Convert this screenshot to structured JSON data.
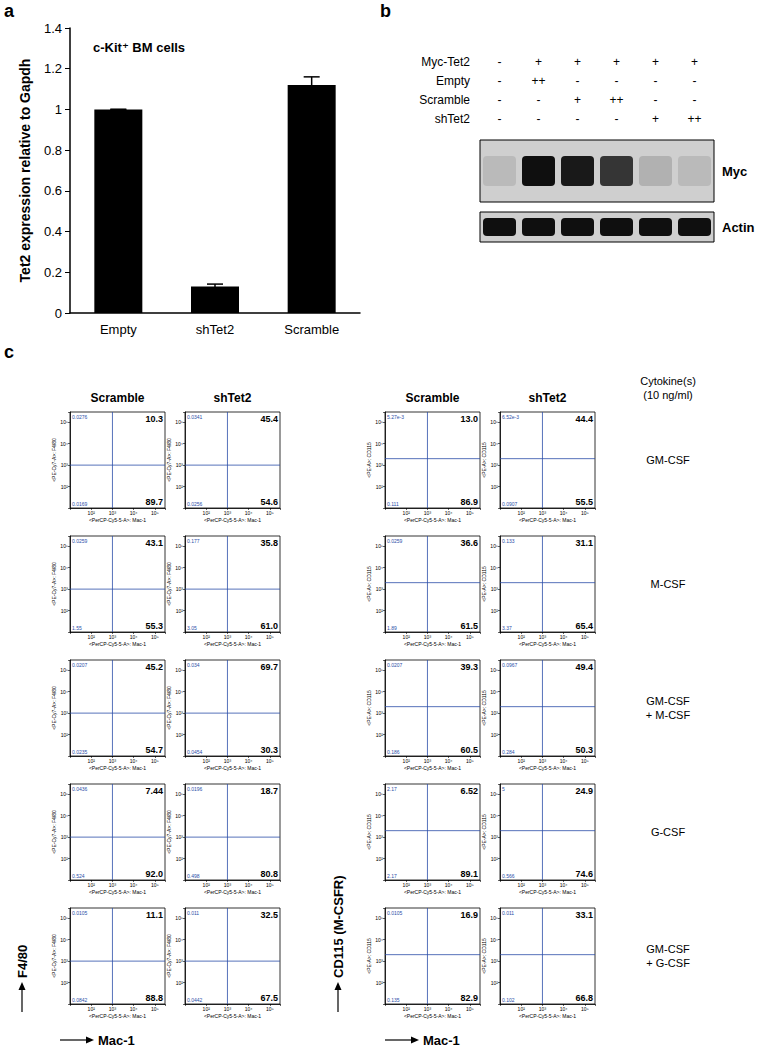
{
  "panel_labels": [
    "a",
    "b",
    "c"
  ],
  "chart_data": {
    "type": "bar",
    "title": "c-Kit⁺ BM cells",
    "ylabel": "Tet2 expression relative to Gapdh",
    "categories": [
      "Empty",
      "shTet2",
      "Scramble"
    ],
    "values": [
      1.0,
      0.13,
      1.12
    ],
    "errors": [
      0,
      0.012,
      0.04
    ],
    "color": "#000000",
    "ylim": [
      0,
      1.4
    ],
    "yticks": [
      0,
      0.2,
      0.4,
      0.6,
      0.8,
      1,
      1.2,
      1.4
    ],
    "grid": false
  },
  "blot": {
    "rows": [
      {
        "label": "Myc-Tet2",
        "lanes": [
          "-",
          "+",
          "+",
          "+",
          "+",
          "+"
        ]
      },
      {
        "label": "Empty",
        "lanes": [
          "-",
          "++",
          "-",
          "-",
          "-",
          "-"
        ]
      },
      {
        "label": "Scramble",
        "lanes": [
          "-",
          "-",
          "+",
          "++",
          "-",
          "-"
        ]
      },
      {
        "label": "shTet2",
        "lanes": [
          "-",
          "-",
          "-",
          "-",
          "+",
          "++"
        ]
      }
    ],
    "bands": [
      {
        "label": "Myc",
        "intensity": [
          0.1,
          1,
          0.95,
          0.8,
          0.15,
          0.1
        ]
      },
      {
        "label": "Actin",
        "intensity": [
          1,
          1,
          1,
          1,
          1,
          1
        ]
      }
    ]
  },
  "panel_c": {
    "cytokine_header": "Cytokine(s)\n(10 ng/ml)",
    "x_label": "Mac-1",
    "x_axis_title": "<PerCP-Cy5-5-A>: Mac-1",
    "xlim": [
      10,
      300000
    ],
    "ylim": [
      10,
      300000
    ],
    "xticks": [
      {
        "value": 100,
        "label": "10²"
      },
      {
        "value": 1000,
        "label": "10³"
      },
      {
        "value": 10000,
        "label": "10⁴"
      },
      {
        "value": 100000,
        "label": "10⁵"
      }
    ],
    "yticks": [
      {
        "value": 100,
        "label": "10²"
      },
      {
        "value": 1000,
        "label": "10³"
      },
      {
        "value": 10000,
        "label": "10⁴"
      },
      {
        "value": 100000,
        "label": "10⁵"
      }
    ],
    "log": true,
    "grid": false,
    "y_labels": [
      "F4/80",
      "CD115 (M-CSFR)"
    ],
    "columns": [
      {
        "header": "Scramble",
        "y_axis_title": "<PE-Cy7-A>: F4/80",
        "gate": {
          "x": 1000,
          "y": 1000
        }
      },
      {
        "header": "shTet2",
        "y_axis_title": "<PE-Cy7-A>: F4/80",
        "gate": {
          "x": 1000,
          "y": 1000
        }
      },
      {
        "header": "Scramble",
        "y_axis_title": "<PE-A>: CD115",
        "gate": {
          "x": 1000,
          "y": 2000
        }
      },
      {
        "header": "shTet2",
        "y_axis_title": "<PE-A>: CD115",
        "gate": {
          "x": 1000,
          "y": 2000
        }
      }
    ],
    "rows": [
      {
        "cytokine": "GM-CSF",
        "plots": [
          {
            "UL": 0.0276,
            "UR": 10.3,
            "LL": 0.0169,
            "LR": 89.7
          },
          {
            "UL": 0.0341,
            "UR": 45.4,
            "LL": 0.0256,
            "LR": 54.6
          },
          {
            "UL": {
              "value": 0.00527,
              "label": "5.27e-3"
            },
            "UR": {
              "value": 13,
              "label": "13.0"
            },
            "LL": 0.111,
            "LR": 86.9
          },
          {
            "UL": {
              "value": 0.00652,
              "label": "6.52e-3"
            },
            "UR": 44.4,
            "LL": 0.0907,
            "LR": 55.5
          }
        ]
      },
      {
        "cytokine": "M-CSF",
        "plots": [
          {
            "UL": 0.0259,
            "UR": 43.1,
            "LL": 1.55,
            "LR": 55.3
          },
          {
            "UL": 0.177,
            "UR": 35.8,
            "LL": 3.05,
            "LR": {
              "value": 61,
              "label": "61.0"
            }
          },
          {
            "UL": 0.0259,
            "UR": 36.6,
            "LL": 1.89,
            "LR": 61.5
          },
          {
            "UL": 0.133,
            "UR": 31.1,
            "LL": 3.37,
            "LR": 65.4
          }
        ]
      },
      {
        "cytokine": "GM-CSF\n+ M-CSF",
        "plots": [
          {
            "UL": 0.0207,
            "UR": 45.2,
            "LL": 0.0235,
            "LR": 54.7
          },
          {
            "UL": 0.034,
            "UR": 69.7,
            "LL": 0.0454,
            "LR": 30.3
          },
          {
            "UL": 0.0207,
            "UR": 39.3,
            "LL": 0.186,
            "LR": 60.5
          },
          {
            "UL": 0.0967,
            "UR": 49.4,
            "LL": 0.284,
            "LR": 50.3
          }
        ]
      },
      {
        "cytokine": "G-CSF",
        "plots": [
          {
            "UL": 0.0436,
            "UR": 7.44,
            "LL": 0.524,
            "LR": {
              "value": 92,
              "label": "92.0"
            }
          },
          {
            "UL": 0.0196,
            "UR": 18.7,
            "LL": 0.498,
            "LR": 80.8
          },
          {
            "UL": 2.17,
            "UR": 6.52,
            "LL": 2.17,
            "LR": 89.1
          },
          {
            "UL": 5,
            "UR": 24.9,
            "LL": 0.566,
            "LR": 74.6
          }
        ]
      },
      {
        "cytokine": "GM-CSF\n+ G-CSF",
        "plots": [
          {
            "UL": 0.0105,
            "UR": 11.1,
            "LL": 0.0842,
            "LR": 88.8
          },
          {
            "UL": 0.011,
            "UR": 32.5,
            "LL": 0.0442,
            "LR": 67.5
          },
          {
            "UL": 0.0105,
            "UR": 16.9,
            "LL": 0.135,
            "LR": 82.9
          },
          {
            "UL": 0.011,
            "UR": 33.1,
            "LL": 0.102,
            "LR": 66.8
          }
        ]
      }
    ]
  }
}
